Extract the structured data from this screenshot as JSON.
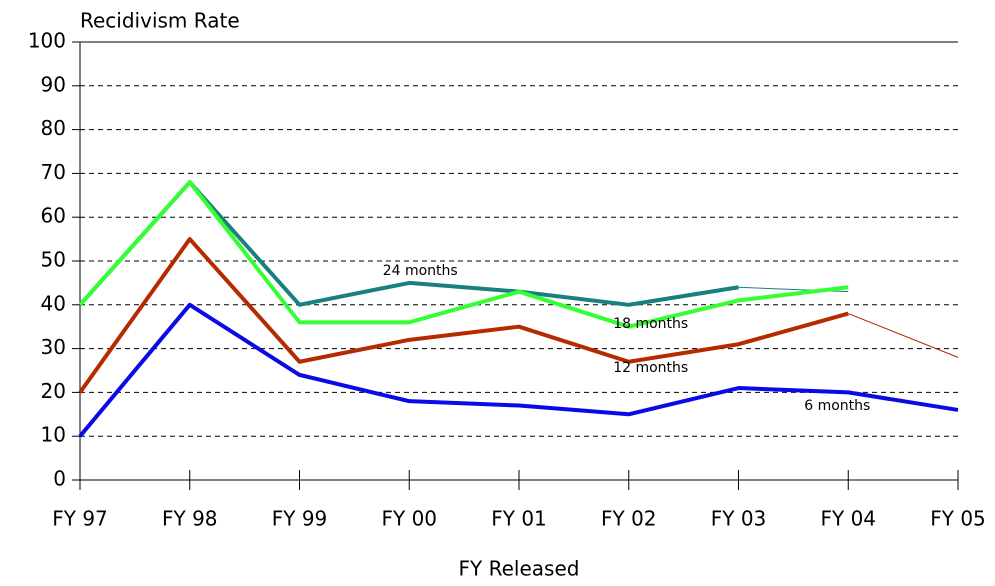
{
  "chart_data": {
    "type": "line",
    "title": "Recidivism Rate",
    "x_label": "FY Released",
    "categories": [
      "FY 97",
      "FY 98",
      "FY 99",
      "FY 00",
      "FY 01",
      "FY 02",
      "FY 03",
      "FY 04",
      "FY 05"
    ],
    "ylim": [
      0,
      100
    ],
    "yticks": [
      0,
      10,
      20,
      30,
      40,
      50,
      60,
      70,
      80,
      90,
      100
    ],
    "grid": true,
    "series": [
      {
        "name": "24 months",
        "color": "#1a7f7f",
        "values": [
          40,
          68,
          40,
          45,
          43,
          40,
          44,
          43,
          null
        ],
        "thin_last_segment": true
      },
      {
        "name": "18 months",
        "color": "#33ff33",
        "values": [
          40,
          68,
          36,
          36,
          43,
          35,
          41,
          44,
          null
        ]
      },
      {
        "name": "12 months",
        "color": "#b52a00",
        "values": [
          20,
          55,
          27,
          32,
          35,
          27,
          31,
          38,
          28
        ],
        "thin_last_segment": true
      },
      {
        "name": "6 months",
        "color": "#0a0ae6",
        "values": [
          10,
          40,
          24,
          18,
          17,
          15,
          21,
          20,
          16
        ]
      }
    ]
  }
}
